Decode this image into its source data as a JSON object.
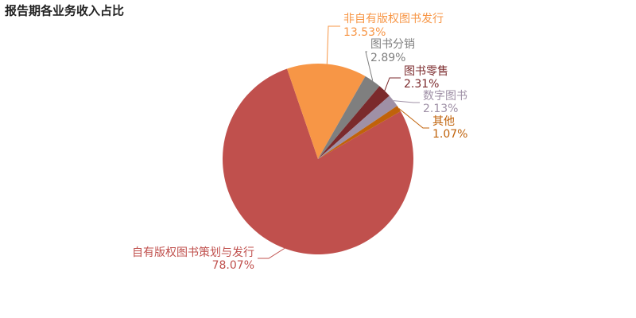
{
  "chart_data": {
    "type": "pie",
    "title": "报告期各业务收入占比",
    "categories": [
      "自有版权图书策划与发行",
      "非自有版权图书发行",
      "图书分销",
      "图书零售",
      "数字图书",
      "其他"
    ],
    "values": [
      78.07,
      13.53,
      2.89,
      2.31,
      2.13,
      1.07
    ],
    "value_labels": [
      "78.07%",
      "13.53%",
      "2.89%",
      "2.31%",
      "2.13%",
      "1.07%"
    ],
    "colors": [
      "#c0504d",
      "#f79646",
      "#7f7f7f",
      "#7b2a2c",
      "#9f90a6",
      "#c0620a"
    ]
  }
}
